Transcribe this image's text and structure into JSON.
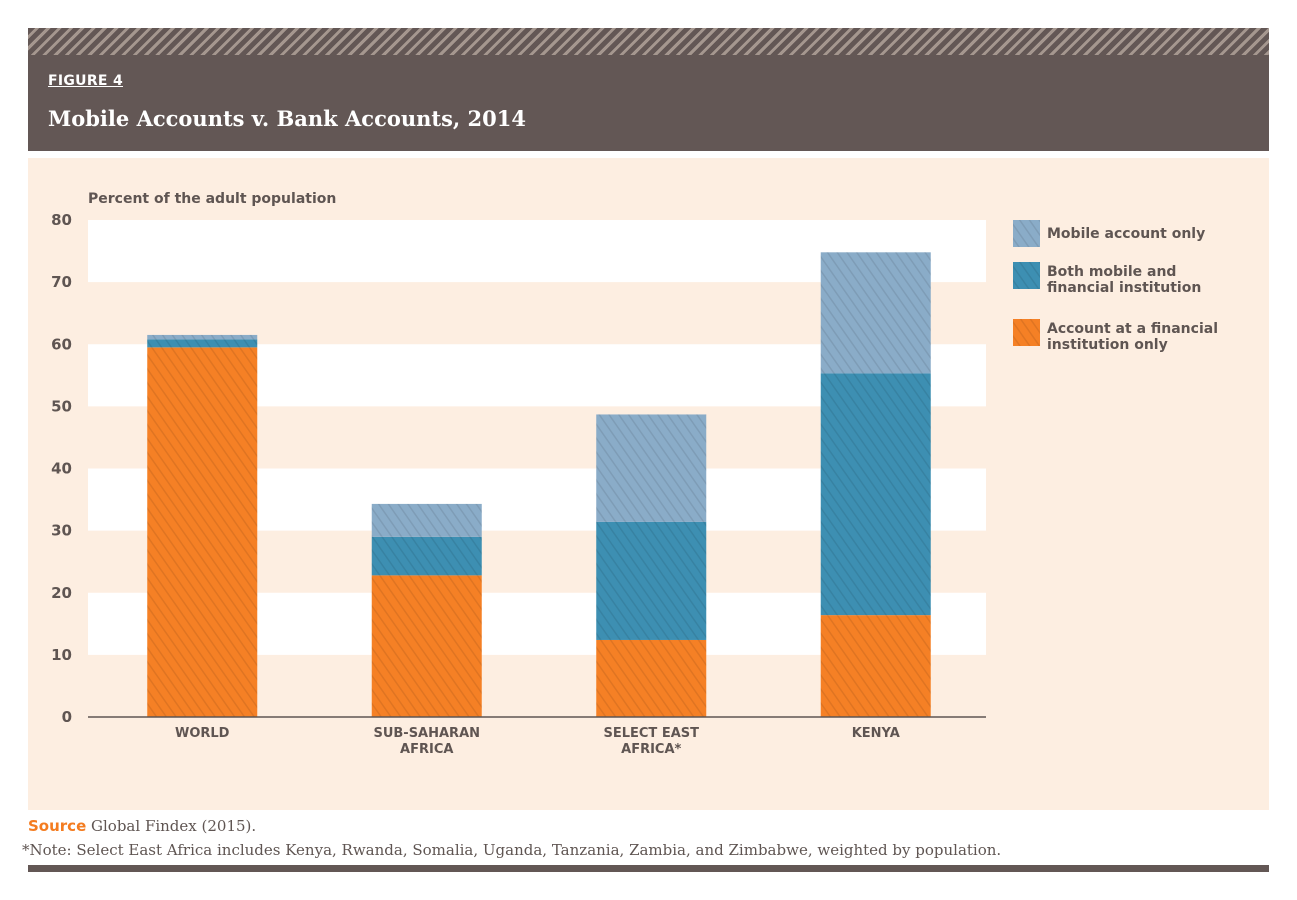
{
  "header": {
    "figure_label": "FIGURE 4",
    "title": "Mobile Accounts v. Bank Accounts, 2014"
  },
  "colors": {
    "header_bg": "#635755",
    "panel_bg": "#fdeee1",
    "band_white": "#ffffff",
    "mobile_only": "#8aacc8",
    "both": "#3d8fb2",
    "financial_only": "#f58025",
    "source_accent": "#f47c20"
  },
  "chart_data": {
    "type": "bar",
    "stacked": true,
    "ylabel": "Percent of the adult population",
    "ylim": [
      0,
      80
    ],
    "yticks": [
      0,
      10,
      20,
      30,
      40,
      50,
      60,
      70,
      80
    ],
    "categories": [
      [
        "WORLD"
      ],
      [
        "SUB-SAHARAN",
        "AFRICA"
      ],
      [
        "SELECT EAST",
        "AFRICA*"
      ],
      [
        "KENYA"
      ]
    ],
    "series": [
      {
        "name": "Account at a financial institution only",
        "legend_lines": [
          "Account at a financial",
          "institution only"
        ],
        "color_key": "financial_only",
        "values": [
          59.5,
          22.8,
          12.4,
          16.4
        ]
      },
      {
        "name": "Both mobile and financial institution",
        "legend_lines": [
          "Both mobile and",
          "financial institution"
        ],
        "color_key": "both",
        "values": [
          1.3,
          6.2,
          19.0,
          38.9
        ]
      },
      {
        "name": "Mobile account only",
        "legend_lines": [
          "Mobile account only"
        ],
        "color_key": "mobile_only",
        "values": [
          0.7,
          5.3,
          17.3,
          19.5
        ]
      }
    ],
    "legend_order": [
      2,
      1,
      0
    ],
    "legend_position": "right",
    "grid": "alternating horizontal bands"
  },
  "footer": {
    "source_label": "Source",
    "source_text": " Global Findex (2015).",
    "note": "*Note: Select East Africa includes Kenya, Rwanda, Somalia, Uganda, Tanzania, Zambia, and Zimbabwe, weighted by population."
  }
}
